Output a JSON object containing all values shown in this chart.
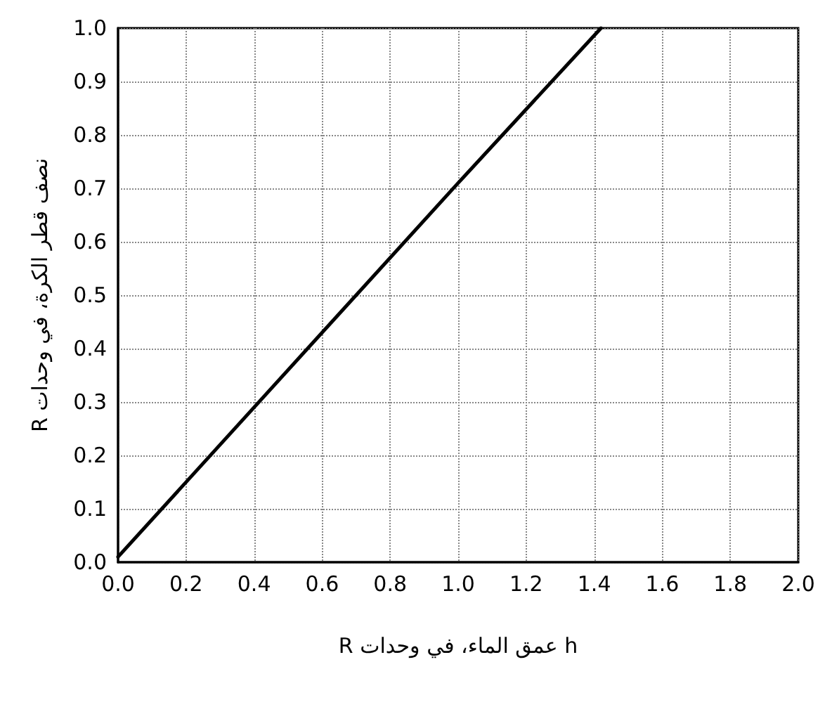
{
  "chart_data": {
    "type": "line",
    "xlabel": "h عمق الماء، في وحدات R",
    "ylabel": "نصف قطر الكرة، في وحدات R",
    "x": [
      0,
      0.4,
      1.0,
      1.42
    ],
    "series": [
      {
        "color": "#000000",
        "values": [
          0.01,
          0.29,
          0.71,
          1.0
        ]
      }
    ],
    "xlim": [
      0,
      2
    ],
    "xticks": [
      {
        "value": 0,
        "label": "0.0"
      },
      {
        "value": 0.2,
        "label": "0.2"
      },
      {
        "value": 0.4,
        "label": "0.4"
      },
      {
        "value": 0.6,
        "label": "0.6"
      },
      {
        "value": 0.8,
        "label": "0.8"
      },
      {
        "value": 1,
        "label": "1.0"
      },
      {
        "value": 1.2,
        "label": "1.2"
      },
      {
        "value": 1.4,
        "label": "1.4"
      },
      {
        "value": 1.6,
        "label": "1.6"
      },
      {
        "value": 1.8,
        "label": "1.8"
      },
      {
        "value": 2,
        "label": "2.0"
      }
    ],
    "ylim": [
      0,
      1
    ],
    "yticks": [
      {
        "value": 0,
        "label": "0.0"
      },
      {
        "value": 0.1,
        "label": "0.1"
      },
      {
        "value": 0.2,
        "label": "0.2"
      },
      {
        "value": 0.3,
        "label": "0.3"
      },
      {
        "value": 0.4,
        "label": "0.4"
      },
      {
        "value": 0.5,
        "label": "0.5"
      },
      {
        "value": 0.6,
        "label": "0.6"
      },
      {
        "value": 0.7,
        "label": "0.7"
      },
      {
        "value": 0.8,
        "label": "0.8"
      },
      {
        "value": 0.9,
        "label": "0.9"
      },
      {
        "value": 1,
        "label": "1.0"
      }
    ],
    "grid": true,
    "marker": "none",
    "line_style": "solid"
  }
}
